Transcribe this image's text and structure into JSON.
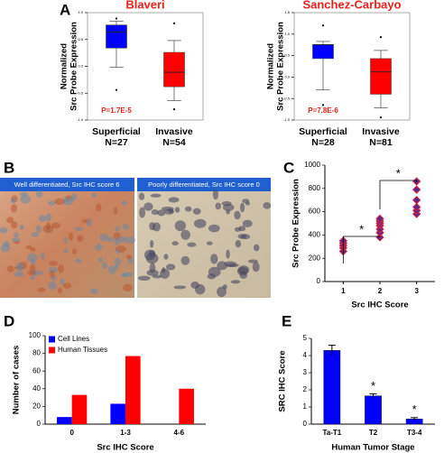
{
  "panels": [
    "A",
    "B",
    "C",
    "D",
    "E"
  ],
  "images": [
    {
      "caption": "Well differentiated, Src IHC score 6"
    },
    {
      "caption": "Poorly differentiated, Src IHC score 0"
    }
  ],
  "chart_data": [
    {
      "type": "box",
      "title": "Blaveri",
      "ylabel": [
        "Normalized",
        "Src Probe Expression"
      ],
      "categories": [
        "Superficial",
        "Invasive"
      ],
      "n_labels": [
        "N=27",
        "N=54"
      ],
      "colors": [
        "#0000ff",
        "#ff0000"
      ],
      "boxes": [
        {
          "whisker_low": -0.02,
          "q1": 0.34,
          "median": 0.64,
          "q3": 0.77,
          "whisker_high": 0.84,
          "outliers": [
            0.89,
            -0.44
          ]
        },
        {
          "whisker_low": -0.64,
          "q1": -0.38,
          "median": -0.11,
          "q3": 0.26,
          "whisker_high": 0.48,
          "outliers": [
            0.8,
            -0.8
          ]
        }
      ],
      "annotation": "P=1.7E-5",
      "ylim": [
        -1.0,
        1.0
      ],
      "yticks": [
        {
          "value": -1.0,
          "label": "-1.0"
        },
        -0.5,
        {
          "value": 0,
          "label": "0.0"
        },
        0.5,
        {
          "value": 1.0,
          "label": "1.0"
        }
      ]
    },
    {
      "type": "box",
      "title": "Sanchez-Carbayo",
      "ylabel": [
        "Normalized",
        "Src Probe Expression"
      ],
      "categories": [
        "Superficial",
        "Invasive"
      ],
      "n_labels": [
        "N=28",
        "N=81"
      ],
      "colors": [
        "#0000ff",
        "#ff0000"
      ],
      "boxes": [
        {
          "whisker_low": -0.3,
          "q1": 0.43,
          "median": 0.75,
          "q3": 0.76,
          "whisker_high": 0.83,
          "outliers": [
            1.2,
            -0.65
          ]
        },
        {
          "whisker_low": -0.72,
          "q1": -0.4,
          "median": 0.12,
          "q3": 0.43,
          "whisker_high": 0.62,
          "outliers": [
            0.93,
            -0.94
          ]
        }
      ],
      "annotation": "P=7.8E-6",
      "ylim": [
        -1.0,
        1.5
      ],
      "yticks": [
        {
          "value": -1.0,
          "label": "-1.0"
        },
        -0.5,
        {
          "value": 0,
          "label": "0.0"
        },
        0.5,
        {
          "value": 1.0,
          "label": "1.0"
        },
        1.5
      ]
    },
    {
      "type": "scatter",
      "xlabel": "Src IHC Score",
      "ylabel": "Src Probe Expression",
      "color": "#5b2a86",
      "edge_color": "#e0203a",
      "x": [
        1,
        1,
        1,
        1,
        1,
        2,
        2,
        2,
        2,
        2,
        2,
        2,
        3,
        3,
        3,
        3,
        3,
        3
      ],
      "y": [
        260,
        290,
        310,
        330,
        350,
        380,
        420,
        450,
        480,
        500,
        520,
        540,
        580,
        610,
        640,
        700,
        790,
        860
      ],
      "annotations": [
        "*",
        "*"
      ],
      "xlim": [
        0.5,
        3.5
      ],
      "xticks": [
        1,
        2,
        3
      ],
      "ylim": [
        0,
        1000
      ],
      "yticks": [
        0,
        200,
        400,
        600,
        800,
        1000
      ]
    },
    {
      "type": "grouped_bar",
      "xlabel": "Src IHC Score",
      "ylabel": "Number of cases",
      "categories": [
        "0",
        "1-3",
        "4-6"
      ],
      "series": [
        {
          "name": "Cell Lines",
          "color": "#0000ff",
          "values": [
            8,
            23,
            null
          ]
        },
        {
          "name": "Human Tissues",
          "color": "#ff0000",
          "values": [
            33,
            77,
            40
          ]
        }
      ],
      "legend": "upper-left",
      "ylim": [
        0,
        100
      ],
      "yticks": [
        0,
        20,
        40,
        60,
        80,
        100
      ]
    },
    {
      "type": "error_bar",
      "xlabel": "Human Tumor Stage",
      "ylabel": "SRC IHC Score",
      "color": "#0000ff",
      "categories": [
        "Ta-T1",
        "T2",
        "T3-4"
      ],
      "values": [
        4.3,
        1.65,
        0.3
      ],
      "errors": [
        0.3,
        0.12,
        0.08
      ],
      "significance": [
        null,
        "*",
        "*"
      ],
      "ylim": [
        0,
        5
      ],
      "yticks": [
        0,
        1,
        2,
        3,
        4,
        5
      ]
    }
  ]
}
